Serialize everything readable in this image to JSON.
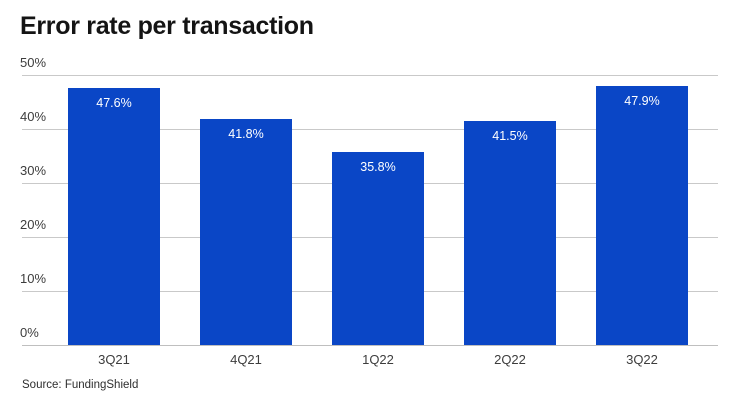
{
  "title": "Error rate per transaction",
  "source": "Source: FundingShield",
  "colors": {
    "bar": "#0a46c6",
    "gridline": "#c9c9c9",
    "axis_line": "#bfbfbf",
    "value_label": "#ffffff",
    "title_text": "#141414",
    "tick_text": "#3d3d3d"
  },
  "chart_data": {
    "type": "bar",
    "title": "Error rate per transaction",
    "categories": [
      "3Q21",
      "4Q21",
      "1Q22",
      "2Q22",
      "3Q22"
    ],
    "values": [
      47.6,
      41.8,
      35.8,
      41.5,
      47.9
    ],
    "value_labels": [
      "47.6%",
      "41.8%",
      "35.8%",
      "41.5%",
      "47.9%"
    ],
    "yticks": [
      "0%",
      "10%",
      "20%",
      "30%",
      "40%",
      "50%"
    ],
    "ylim": [
      0,
      50
    ],
    "xlabel": "",
    "ylabel": "",
    "grid": "horizontal",
    "legend": "none",
    "source": "Source: FundingShield"
  }
}
